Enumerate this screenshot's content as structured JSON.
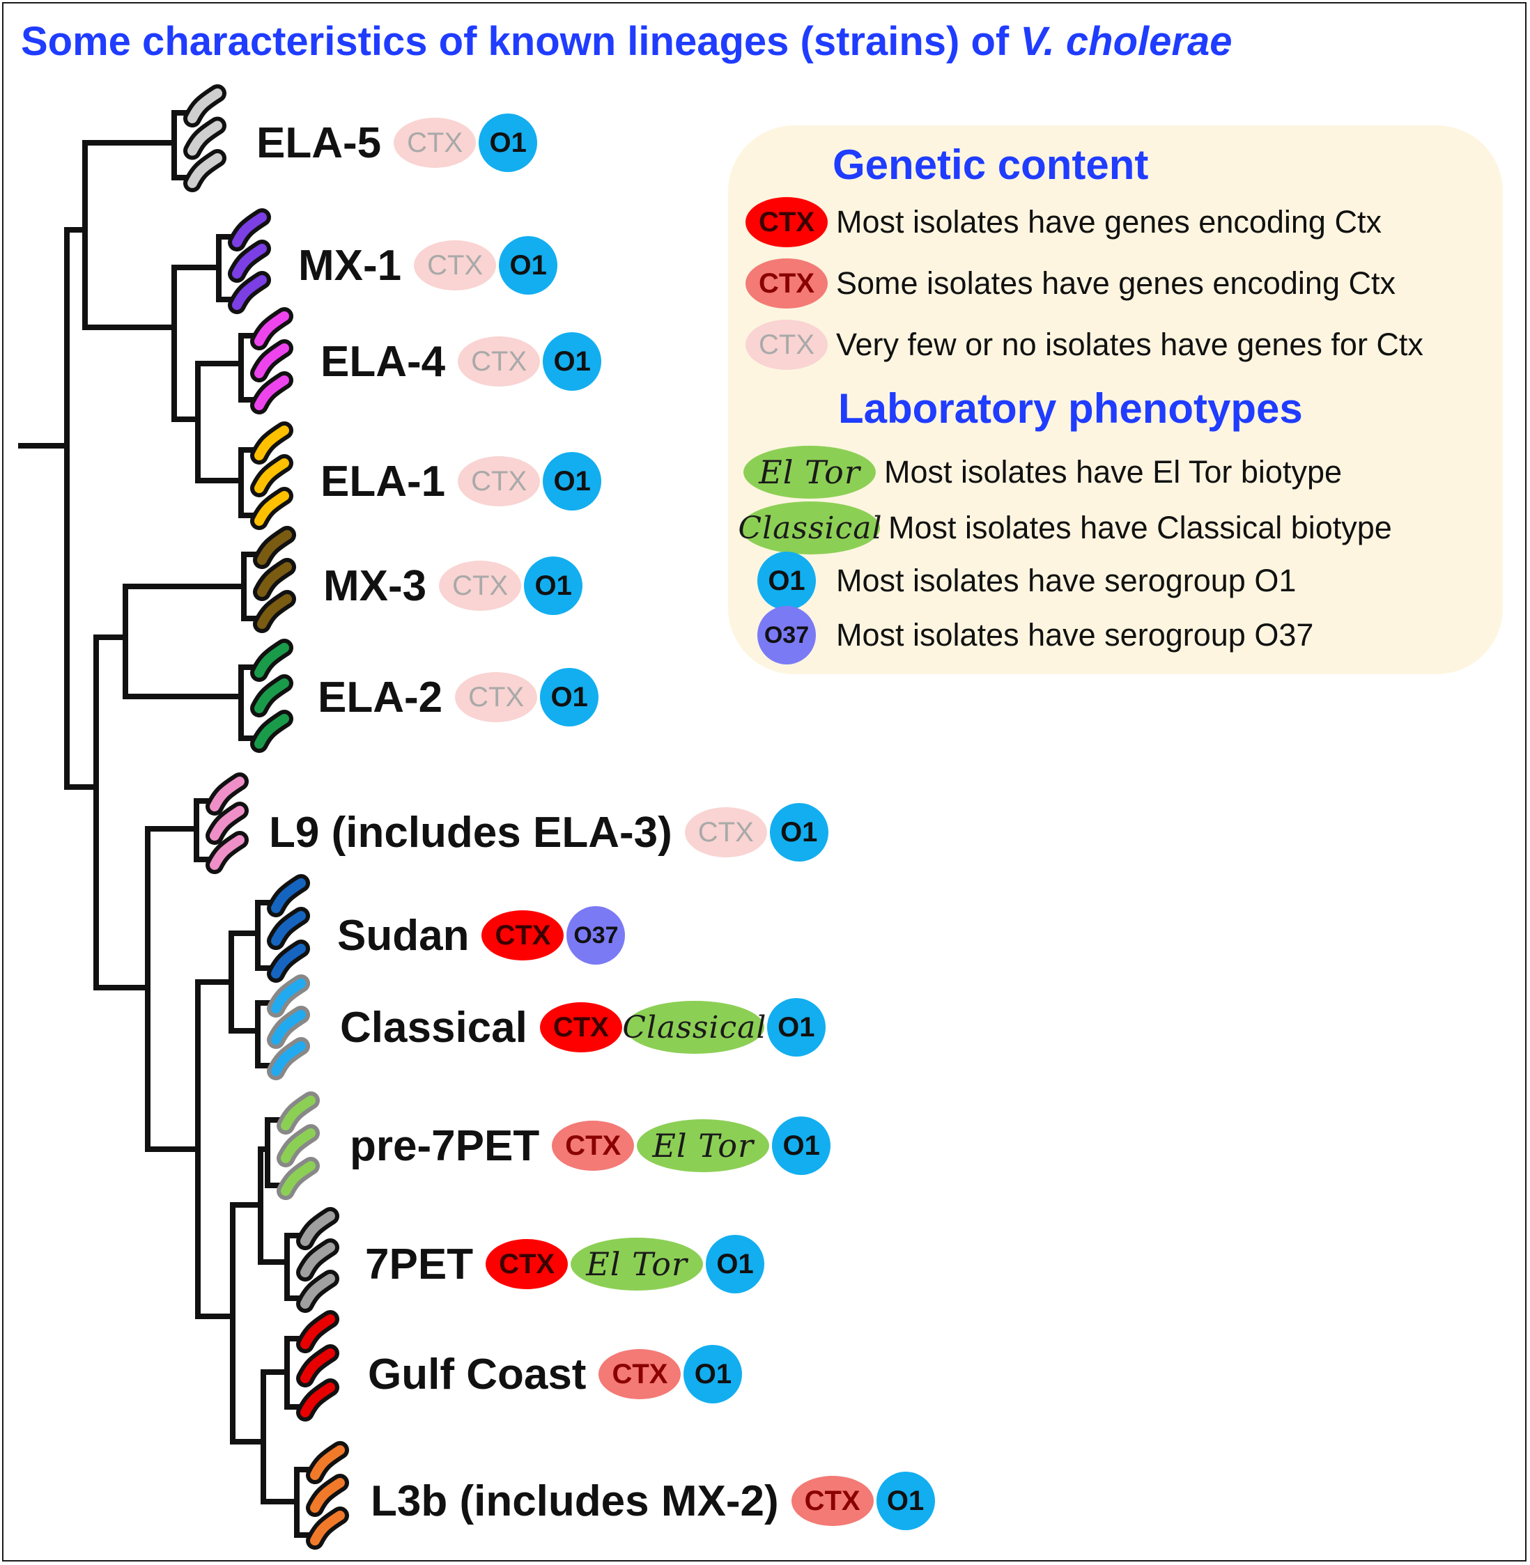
{
  "title": {
    "main": "Some characteristics of known lineages (strains) of ",
    "italic": "V. cholerae"
  },
  "colors": {
    "title_blue": "#1f3cff",
    "ctx_most": "#ff0000",
    "ctx_some": "#f37a75",
    "ctx_few": "#f9d4d2",
    "o1": "#12aef0",
    "o37": "#7b7af5",
    "biotype": "#8ccf55",
    "legend_bg": "#fdf5e0"
  },
  "lineages": [
    {
      "name": "ELA-5",
      "cell_color": "#cfcfcf",
      "badges": [
        {
          "kind": "ctx",
          "level": "few",
          "label": "CTX"
        },
        {
          "kind": "sero",
          "type": "o1",
          "label": "O1"
        }
      ]
    },
    {
      "name": "MX-1",
      "cell_color": "#7b3fe4",
      "badges": [
        {
          "kind": "ctx",
          "level": "few",
          "label": "CTX"
        },
        {
          "kind": "sero",
          "type": "o1",
          "label": "O1"
        }
      ]
    },
    {
      "name": "ELA-4",
      "cell_color": "#ee44ee",
      "badges": [
        {
          "kind": "ctx",
          "level": "few",
          "label": "CTX"
        },
        {
          "kind": "sero",
          "type": "o1",
          "label": "O1"
        }
      ]
    },
    {
      "name": "ELA-1",
      "cell_color": "#ffc000",
      "badges": [
        {
          "kind": "ctx",
          "level": "few",
          "label": "CTX"
        },
        {
          "kind": "sero",
          "type": "o1",
          "label": "O1"
        }
      ]
    },
    {
      "name": "MX-3",
      "cell_color": "#7a5b12",
      "badges": [
        {
          "kind": "ctx",
          "level": "few",
          "label": "CTX"
        },
        {
          "kind": "sero",
          "type": "o1",
          "label": "O1"
        }
      ]
    },
    {
      "name": "ELA-2",
      "cell_color": "#1a9b4a",
      "badges": [
        {
          "kind": "ctx",
          "level": "few",
          "label": "CTX"
        },
        {
          "kind": "sero",
          "type": "o1",
          "label": "O1"
        }
      ]
    },
    {
      "name": "L9 (includes ELA-3)",
      "cell_color": "#ee8fc8",
      "badges": [
        {
          "kind": "ctx",
          "level": "few",
          "label": "CTX"
        },
        {
          "kind": "sero",
          "type": "o1",
          "label": "O1"
        }
      ]
    },
    {
      "name": "Sudan",
      "cell_color": "#1565c0",
      "badges": [
        {
          "kind": "ctx",
          "level": "most",
          "label": "CTX"
        },
        {
          "kind": "sero",
          "type": "o37",
          "label": "O37"
        }
      ]
    },
    {
      "name": "Classical",
      "cell_color": "#22aaf0",
      "border_color": "#888888",
      "badges": [
        {
          "kind": "ctx",
          "level": "most",
          "label": "CTX"
        },
        {
          "kind": "pheno",
          "type": "classical",
          "label": "Classical"
        },
        {
          "kind": "sero",
          "type": "o1",
          "label": "O1"
        }
      ]
    },
    {
      "name": "pre-7PET",
      "cell_color": "#8ccf55",
      "border_color": "#888888",
      "badges": [
        {
          "kind": "ctx",
          "level": "some",
          "label": "CTX"
        },
        {
          "kind": "pheno",
          "type": "eltor",
          "label": "El Tor"
        },
        {
          "kind": "sero",
          "type": "o1",
          "label": "O1"
        }
      ]
    },
    {
      "name": "7PET",
      "cell_color": "#a0a0a0",
      "badges": [
        {
          "kind": "ctx",
          "level": "most",
          "label": "CTX"
        },
        {
          "kind": "pheno",
          "type": "eltor",
          "label": "El Tor"
        },
        {
          "kind": "sero",
          "type": "o1",
          "label": "O1"
        }
      ]
    },
    {
      "name": "Gulf Coast",
      "cell_color": "#e80000",
      "badges": [
        {
          "kind": "ctx",
          "level": "some",
          "label": "CTX"
        },
        {
          "kind": "sero",
          "type": "o1",
          "label": "O1"
        }
      ]
    },
    {
      "name": "L3b (includes MX-2)",
      "cell_color": "#f07a2a",
      "badges": [
        {
          "kind": "ctx",
          "level": "some",
          "label": "CTX"
        },
        {
          "kind": "sero",
          "type": "o1",
          "label": "O1"
        }
      ]
    }
  ],
  "legend": {
    "genetic_heading": "Genetic content",
    "phenotype_heading": "Laboratory phenotypes",
    "genetic_items": [
      {
        "level": "most",
        "badge": "CTX",
        "text": "Most isolates have genes encoding Ctx"
      },
      {
        "level": "some",
        "badge": "CTX",
        "text": "Some isolates have genes encoding Ctx"
      },
      {
        "level": "few",
        "badge": "CTX",
        "text": "Very few or no isolates have genes for Ctx"
      }
    ],
    "phenotype_items": [
      {
        "kind": "pheno",
        "type": "eltor",
        "badge": "El Tor",
        "text": "Most isolates have El Tor biotype"
      },
      {
        "kind": "pheno",
        "type": "classical",
        "badge": "Classical",
        "text": "Most isolates have Classical biotype"
      },
      {
        "kind": "sero",
        "type": "o1",
        "badge": "O1",
        "text": "Most isolates have serogroup O1"
      },
      {
        "kind": "sero",
        "type": "o37",
        "badge": "O37",
        "text": "Most isolates have serogroup O37"
      }
    ]
  }
}
